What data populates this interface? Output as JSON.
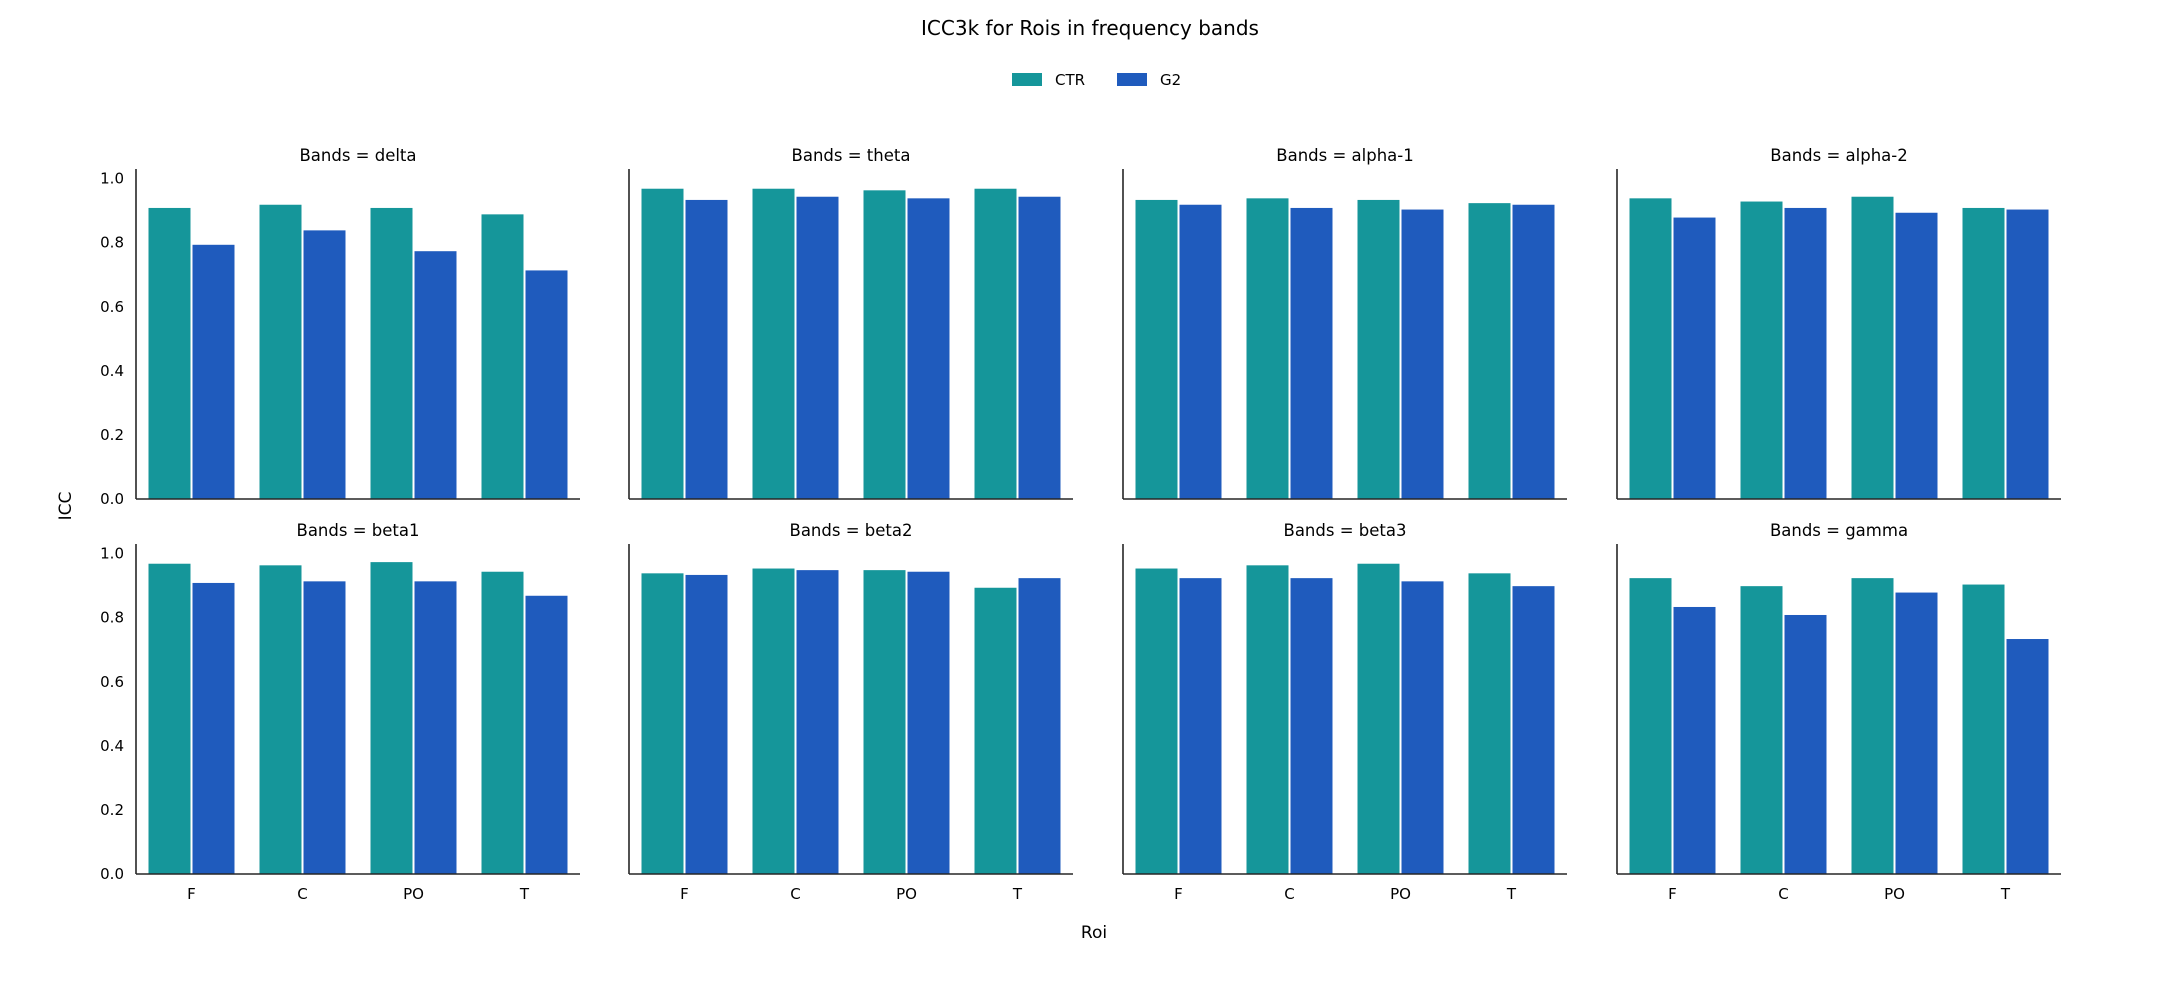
{
  "chart_data": {
    "type": "bar",
    "title": "ICC3k for Rois in frequency bands",
    "xlabel": "Roi",
    "ylabel": "ICC",
    "ylim": [
      0,
      1.03
    ],
    "yticks": [
      "0.0",
      "0.2",
      "0.4",
      "0.6",
      "0.8",
      "1.0"
    ],
    "categories": [
      "F",
      "C",
      "PO",
      "T"
    ],
    "legend": {
      "placement": "top-center",
      "entries": [
        {
          "name": "CTR",
          "color": "#15969a"
        },
        {
          "name": "G2",
          "color": "#1f5bbd"
        }
      ]
    },
    "grid": false,
    "panels": [
      {
        "title": "Bands = delta",
        "series": [
          {
            "name": "CTR",
            "values": [
              0.91,
              0.92,
              0.91,
              0.89
            ]
          },
          {
            "name": "G2",
            "values": [
              0.795,
              0.84,
              0.775,
              0.715
            ]
          }
        ]
      },
      {
        "title": "Bands = theta",
        "series": [
          {
            "name": "CTR",
            "values": [
              0.97,
              0.97,
              0.965,
              0.97
            ]
          },
          {
            "name": "G2",
            "values": [
              0.935,
              0.945,
              0.94,
              0.945
            ]
          }
        ]
      },
      {
        "title": "Bands = alpha-1",
        "series": [
          {
            "name": "CTR",
            "values": [
              0.935,
              0.94,
              0.935,
              0.925
            ]
          },
          {
            "name": "G2",
            "values": [
              0.92,
              0.91,
              0.905,
              0.92
            ]
          }
        ]
      },
      {
        "title": "Bands = alpha-2",
        "series": [
          {
            "name": "CTR",
            "values": [
              0.94,
              0.93,
              0.945,
              0.91
            ]
          },
          {
            "name": "G2",
            "values": [
              0.88,
              0.91,
              0.895,
              0.905
            ]
          }
        ]
      },
      {
        "title": "Bands = beta1",
        "series": [
          {
            "name": "CTR",
            "values": [
              0.97,
              0.965,
              0.975,
              0.945
            ]
          },
          {
            "name": "G2",
            "values": [
              0.91,
              0.915,
              0.915,
              0.87
            ]
          }
        ]
      },
      {
        "title": "Bands = beta2",
        "series": [
          {
            "name": "CTR",
            "values": [
              0.94,
              0.955,
              0.95,
              0.895
            ]
          },
          {
            "name": "G2",
            "values": [
              0.935,
              0.95,
              0.945,
              0.925
            ]
          }
        ]
      },
      {
        "title": "Bands = beta3",
        "series": [
          {
            "name": "CTR",
            "values": [
              0.955,
              0.965,
              0.97,
              0.94
            ]
          },
          {
            "name": "G2",
            "values": [
              0.925,
              0.925,
              0.915,
              0.9
            ]
          }
        ]
      },
      {
        "title": "Bands = gamma",
        "series": [
          {
            "name": "CTR",
            "values": [
              0.925,
              0.9,
              0.925,
              0.905
            ]
          },
          {
            "name": "G2",
            "values": [
              0.835,
              0.81,
              0.88,
              0.735
            ]
          }
        ]
      }
    ]
  }
}
